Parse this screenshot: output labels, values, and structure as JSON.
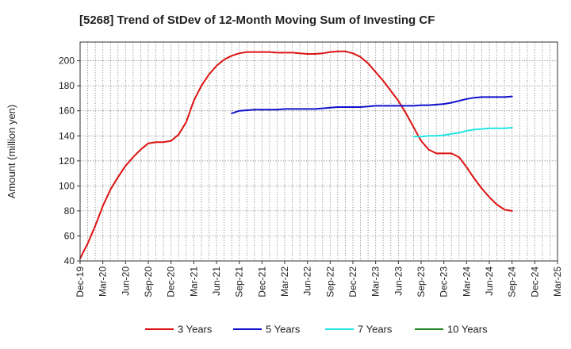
{
  "chart_data": {
    "type": "line",
    "title": "[5268]  Trend of StDev of 12-Month Moving Sum of Investing CF",
    "ylabel": "Amount (million yen)",
    "xlabel": "",
    "ylim": [
      40,
      215
    ],
    "yticks": [
      40,
      60,
      80,
      100,
      120,
      140,
      160,
      180,
      200
    ],
    "x_ticks": [
      "Dec-19",
      "Mar-20",
      "Jun-20",
      "Sep-20",
      "Dec-20",
      "Mar-21",
      "Jun-21",
      "Sep-21",
      "Dec-21",
      "Mar-22",
      "Jun-22",
      "Sep-22",
      "Dec-22",
      "Mar-23",
      "Jun-23",
      "Sep-23",
      "Dec-23",
      "Mar-24",
      "Jun-24",
      "Sep-24",
      "Dec-24",
      "Mar-25"
    ],
    "grid": true,
    "legend_position": "bottom",
    "series": [
      {
        "name": "3 Years",
        "color": "#dd1111",
        "points": [
          [
            "Dec-19",
            42
          ],
          [
            "Jan-20",
            54
          ],
          [
            "Feb-20",
            68
          ],
          [
            "Mar-20",
            84
          ],
          [
            "Apr-20",
            97
          ],
          [
            "May-20",
            107
          ],
          [
            "Jun-20",
            116
          ],
          [
            "Jul-20",
            123
          ],
          [
            "Aug-20",
            129
          ],
          [
            "Sep-20",
            134
          ],
          [
            "Oct-20",
            135
          ],
          [
            "Nov-20",
            135
          ],
          [
            "Dec-20",
            136
          ],
          [
            "Jan-21",
            141
          ],
          [
            "Feb-21",
            151
          ],
          [
            "Mar-21",
            168
          ],
          [
            "Apr-21",
            180
          ],
          [
            "May-21",
            189
          ],
          [
            "Jun-21",
            196
          ],
          [
            "Jul-21",
            201
          ],
          [
            "Aug-21",
            204
          ],
          [
            "Sep-21",
            206
          ],
          [
            "Oct-21",
            207
          ],
          [
            "Nov-21",
            207
          ],
          [
            "Dec-21",
            207
          ],
          [
            "Jan-22",
            207
          ],
          [
            "Feb-22",
            206.5
          ],
          [
            "Mar-22",
            206.5
          ],
          [
            "Apr-22",
            206.5
          ],
          [
            "May-22",
            206
          ],
          [
            "Jun-22",
            205.5
          ],
          [
            "Jul-22",
            205.5
          ],
          [
            "Aug-22",
            206
          ],
          [
            "Sep-22",
            207
          ],
          [
            "Oct-22",
            207.5
          ],
          [
            "Nov-22",
            207.5
          ],
          [
            "Dec-22",
            206
          ],
          [
            "Jan-23",
            203
          ],
          [
            "Feb-23",
            198
          ],
          [
            "Mar-23",
            191
          ],
          [
            "Apr-23",
            184
          ],
          [
            "May-23",
            176
          ],
          [
            "Jun-23",
            168
          ],
          [
            "Jul-23",
            158
          ],
          [
            "Aug-23",
            147
          ],
          [
            "Sep-23",
            136
          ],
          [
            "Oct-23",
            129
          ],
          [
            "Nov-23",
            126
          ],
          [
            "Dec-23",
            126
          ],
          [
            "Jan-24",
            126
          ],
          [
            "Feb-24",
            123
          ],
          [
            "Mar-24",
            115
          ],
          [
            "Apr-24",
            106
          ],
          [
            "May-24",
            98
          ],
          [
            "Jun-24",
            91
          ],
          [
            "Jul-24",
            85
          ],
          [
            "Aug-24",
            81
          ],
          [
            "Sep-24",
            80
          ]
        ]
      },
      {
        "name": "5 Years",
        "color": "#1111cc",
        "points": [
          [
            "Aug-21",
            158
          ],
          [
            "Sep-21",
            160
          ],
          [
            "Oct-21",
            160.5
          ],
          [
            "Nov-21",
            161
          ],
          [
            "Dec-21",
            161
          ],
          [
            "Jan-22",
            161
          ],
          [
            "Feb-22",
            161
          ],
          [
            "Mar-22",
            161.5
          ],
          [
            "Apr-22",
            161.5
          ],
          [
            "May-22",
            161.5
          ],
          [
            "Jun-22",
            161.5
          ],
          [
            "Jul-22",
            161.5
          ],
          [
            "Aug-22",
            162
          ],
          [
            "Sep-22",
            162.5
          ],
          [
            "Oct-22",
            163
          ],
          [
            "Nov-22",
            163
          ],
          [
            "Dec-22",
            163
          ],
          [
            "Jan-23",
            163
          ],
          [
            "Feb-23",
            163.5
          ],
          [
            "Mar-23",
            164
          ],
          [
            "Apr-23",
            164
          ],
          [
            "May-23",
            164
          ],
          [
            "Jun-23",
            164
          ],
          [
            "Jul-23",
            164
          ],
          [
            "Aug-23",
            164
          ],
          [
            "Sep-23",
            164.5
          ],
          [
            "Oct-23",
            164.5
          ],
          [
            "Nov-23",
            165
          ],
          [
            "Dec-23",
            165.5
          ],
          [
            "Jan-24",
            166.5
          ],
          [
            "Feb-24",
            168
          ],
          [
            "Mar-24",
            169.5
          ],
          [
            "Apr-24",
            170.5
          ],
          [
            "May-24",
            171
          ],
          [
            "Jun-24",
            171
          ],
          [
            "Jul-24",
            171
          ],
          [
            "Aug-24",
            171
          ],
          [
            "Sep-24",
            171.5
          ]
        ]
      },
      {
        "name": "7 Years",
        "color": "#22e5e5",
        "points": [
          [
            "Aug-23",
            139.5
          ],
          [
            "Sep-23",
            139.5
          ],
          [
            "Oct-23",
            140
          ],
          [
            "Nov-23",
            140
          ],
          [
            "Dec-23",
            140.5
          ],
          [
            "Jan-24",
            141.5
          ],
          [
            "Feb-24",
            142.5
          ],
          [
            "Mar-24",
            144
          ],
          [
            "Apr-24",
            145
          ],
          [
            "May-24",
            145.5
          ],
          [
            "Jun-24",
            146
          ],
          [
            "Jul-24",
            146
          ],
          [
            "Aug-24",
            146
          ],
          [
            "Sep-24",
            146.5
          ]
        ]
      },
      {
        "name": "10 Years",
        "color": "#228822",
        "points": []
      }
    ]
  }
}
